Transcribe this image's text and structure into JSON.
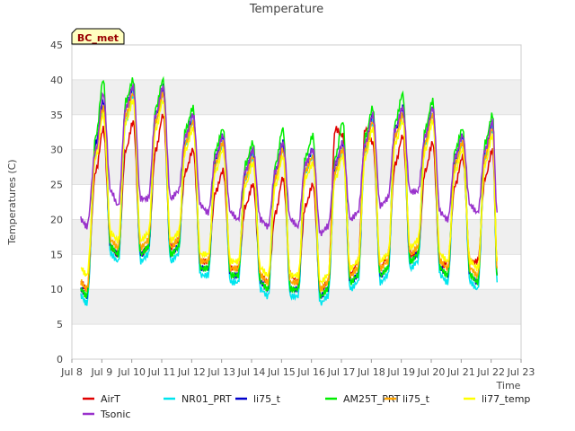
{
  "chart_data": {
    "type": "line",
    "title": "Temperature",
    "xlabel": "Time",
    "ylabel": "Temperatures (C)",
    "station_label": "BC_met",
    "ylim": [
      0,
      45
    ],
    "xlim": [
      "Jul 8",
      "Jul 23"
    ],
    "yticks": [
      "0",
      "5",
      "10",
      "15",
      "20",
      "25",
      "30",
      "35",
      "40",
      "45"
    ],
    "xticks": [
      "Jul 8",
      "Jul 9",
      "Jul 10",
      "Jul 11",
      "Jul 12",
      "Jul 13",
      "Jul 14",
      "Jul 15",
      "Jul 16",
      "Jul 17",
      "Jul 18",
      "Jul 19",
      "Jul 20",
      "Jul 21",
      "Jul 22",
      "Jul 23"
    ],
    "grid": "horizontal bands",
    "legend_position": "bottom",
    "x_days": [
      8.3,
      8.5,
      8.8,
      9.05,
      9.3,
      9.55,
      9.8,
      10.05,
      10.3,
      10.55,
      10.8,
      11.05,
      11.3,
      11.55,
      11.8,
      12.05,
      12.3,
      12.55,
      12.8,
      13.05,
      13.3,
      13.55,
      13.8,
      14.05,
      14.3,
      14.55,
      14.8,
      15.05,
      15.3,
      15.55,
      15.8,
      16.05,
      16.3,
      16.55,
      16.8,
      17.05,
      17.3,
      17.55,
      17.8,
      18.05,
      18.3,
      18.55,
      18.8,
      19.05,
      19.3,
      19.55,
      19.8,
      20.05,
      20.3,
      20.55,
      20.8,
      21.05,
      21.3,
      21.55,
      21.8,
      22.05,
      22.2
    ],
    "series": [
      {
        "name": "AirT",
        "color": "#e00000",
        "values": [
          11,
          10,
          27,
          33,
          16,
          15,
          30,
          34,
          15,
          16,
          30,
          35,
          16,
          17,
          27,
          30,
          14,
          14,
          24,
          27,
          13,
          13,
          22,
          25,
          12,
          11,
          21,
          26,
          12,
          11,
          22,
          25,
          10,
          11,
          33,
          32,
          12,
          14,
          33,
          31,
          13,
          15,
          28,
          32,
          15,
          15,
          27,
          31,
          13,
          14,
          25,
          29,
          14,
          14,
          26,
          30,
          14
        ]
      },
      {
        "name": "NR01_PRT",
        "color": "#00e5ee",
        "values": [
          9,
          8,
          30,
          36,
          15,
          14,
          34,
          38,
          14,
          15,
          34,
          38,
          14,
          15,
          31,
          34,
          12,
          12,
          28,
          31,
          11,
          11,
          26,
          29,
          10,
          9,
          26,
          30,
          9,
          9,
          27,
          29,
          8,
          9,
          27,
          30,
          10,
          11,
          30,
          34,
          11,
          12,
          32,
          35,
          13,
          14,
          31,
          35,
          12,
          11,
          28,
          31,
          11,
          10,
          29,
          33,
          11
        ]
      },
      {
        "name": "li75_t",
        "color": "#0000cc",
        "values": [
          10,
          9,
          31,
          37,
          16,
          15,
          36,
          39,
          15,
          16,
          35,
          39,
          15,
          16,
          32,
          35,
          13,
          13,
          29,
          32,
          12,
          12,
          27,
          30,
          11,
          10,
          27,
          31,
          10,
          10,
          28,
          30,
          9,
          10,
          28,
          31,
          11,
          12,
          31,
          35,
          12,
          13,
          33,
          36,
          14,
          15,
          32,
          36,
          13,
          12,
          29,
          32,
          12,
          11,
          30,
          34,
          12
        ]
      },
      {
        "name": "AM25T_PRT",
        "color": "#00ee00",
        "values": [
          10,
          9,
          32,
          40,
          16,
          15,
          37,
          40,
          15,
          16,
          36,
          40,
          15,
          16,
          33,
          36,
          13,
          13,
          30,
          33,
          12,
          12,
          28,
          31,
          11,
          10,
          28,
          33,
          10,
          10,
          29,
          32,
          9,
          10,
          29,
          34,
          11,
          12,
          32,
          36,
          12,
          13,
          34,
          38,
          14,
          15,
          33,
          37,
          13,
          12,
          30,
          33,
          12,
          11,
          31,
          35,
          12
        ]
      },
      {
        "name": "li75_t",
        "color": "#ffa500",
        "values": [
          11,
          10,
          30,
          36,
          17,
          16,
          35,
          38,
          16,
          17,
          34,
          38,
          16,
          17,
          31,
          34,
          14,
          14,
          28,
          31,
          13,
          13,
          26,
          29,
          12,
          11,
          26,
          30,
          11,
          11,
          27,
          29,
          10,
          11,
          27,
          30,
          12,
          13,
          30,
          34,
          13,
          14,
          32,
          35,
          15,
          16,
          31,
          35,
          14,
          13,
          28,
          31,
          13,
          12,
          29,
          33,
          13
        ]
      },
      {
        "name": "li77_temp",
        "color": "#ffff00",
        "values": [
          13,
          12,
          29,
          35,
          18,
          17,
          34,
          37,
          17,
          18,
          33,
          37,
          17,
          18,
          30,
          33,
          15,
          15,
          27,
          30,
          14,
          14,
          25,
          28,
          13,
          12,
          25,
          29,
          12,
          12,
          26,
          28,
          11,
          12,
          26,
          29,
          13,
          14,
          29,
          33,
          14,
          15,
          31,
          34,
          16,
          17,
          30,
          34,
          15,
          14,
          27,
          30,
          14,
          13,
          28,
          32,
          14
        ]
      },
      {
        "name": "Tsonic",
        "color": "#9932cc",
        "values": [
          20,
          19,
          30,
          38,
          24,
          22,
          36,
          39,
          23,
          23,
          35,
          39,
          23,
          24,
          32,
          35,
          22,
          21,
          29,
          32,
          21,
          20,
          27,
          30,
          20,
          19,
          27,
          31,
          20,
          19,
          28,
          30,
          18,
          19,
          28,
          31,
          20,
          21,
          31,
          35,
          22,
          23,
          33,
          36,
          24,
          24,
          32,
          36,
          21,
          20,
          29,
          32,
          22,
          21,
          30,
          34,
          21
        ]
      }
    ]
  }
}
